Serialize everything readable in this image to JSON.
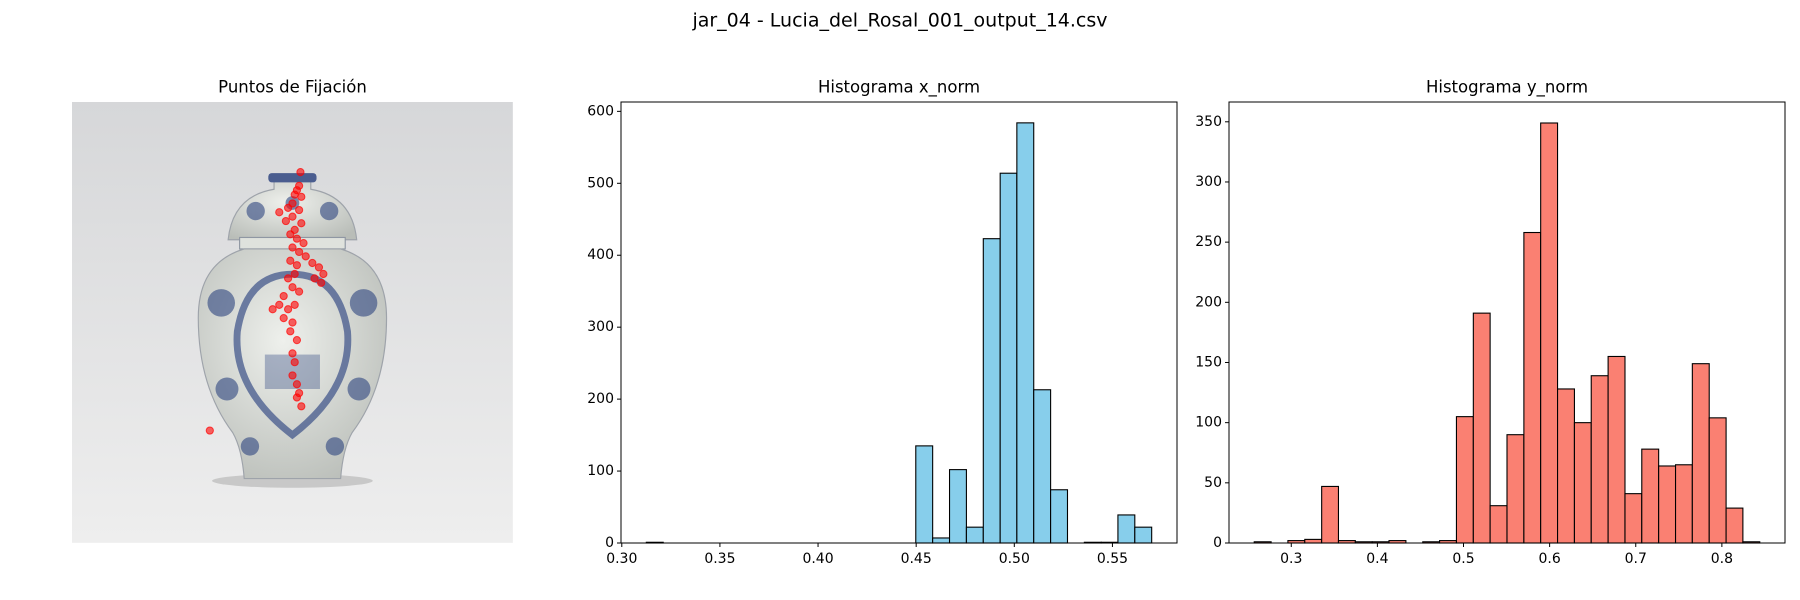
{
  "title": "jar_04 - Lucia_del_Rosal_001_output_14.csv",
  "chart_data": [
    {
      "type": "scatter",
      "title": "Puntos de Fijación",
      "color": "#ff0000",
      "xlim": [
        0,
        1
      ],
      "ylim": [
        1,
        0
      ],
      "x": [
        0.518,
        0.515,
        0.51,
        0.505,
        0.52,
        0.5,
        0.49,
        0.515,
        0.47,
        0.5,
        0.485,
        0.52,
        0.505,
        0.495,
        0.51,
        0.525,
        0.5,
        0.515,
        0.53,
        0.495,
        0.51,
        0.545,
        0.56,
        0.57,
        0.565,
        0.55,
        0.505,
        0.49,
        0.5,
        0.515,
        0.48,
        0.47,
        0.455,
        0.49,
        0.505,
        0.48,
        0.5,
        0.495,
        0.51,
        0.5,
        0.505,
        0.5,
        0.51,
        0.515,
        0.51,
        0.52,
        0.3125
      ],
      "y": [
        0.159,
        0.19,
        0.2,
        0.21,
        0.215,
        0.23,
        0.24,
        0.245,
        0.25,
        0.26,
        0.27,
        0.275,
        0.29,
        0.3,
        0.31,
        0.32,
        0.33,
        0.34,
        0.35,
        0.36,
        0.37,
        0.365,
        0.375,
        0.39,
        0.41,
        0.4,
        0.39,
        0.4,
        0.42,
        0.43,
        0.44,
        0.46,
        0.47,
        0.47,
        0.46,
        0.49,
        0.5,
        0.52,
        0.54,
        0.57,
        0.59,
        0.62,
        0.64,
        0.66,
        0.67,
        0.69,
        0.745
      ]
    },
    {
      "type": "histogram",
      "title": "Histograma x_norm",
      "color": "#87ceeb",
      "bins": [
        0.3125,
        0.3211,
        0.3297,
        0.3383,
        0.3468,
        0.3554,
        0.364,
        0.3726,
        0.3812,
        0.3898,
        0.3983,
        0.4069,
        0.4155,
        0.4241,
        0.4327,
        0.4413,
        0.4498,
        0.4584,
        0.467,
        0.4756,
        0.4842,
        0.4928,
        0.5013,
        0.5099,
        0.5185,
        0.5271,
        0.5357,
        0.5443,
        0.5528,
        0.5614,
        0.57
      ],
      "values": [
        1,
        0,
        0,
        0,
        0,
        0,
        0,
        0,
        0,
        0,
        0,
        0,
        0,
        0,
        0,
        0,
        135,
        7,
        102,
        22,
        423,
        514,
        584,
        213,
        74,
        0,
        1,
        1,
        39,
        22
      ],
      "xlim": [
        0.2996,
        0.5829
      ],
      "ylim": [
        0,
        613
      ],
      "xticks": [
        {
          "value": 0.3,
          "label": "0.30"
        },
        0.35,
        {
          "value": 0.4,
          "label": "0.40"
        },
        0.45,
        {
          "value": 0.5,
          "label": "0.50"
        },
        0.55
      ],
      "yticks": [
        0,
        100,
        200,
        300,
        400,
        500,
        600
      ]
    },
    {
      "type": "histogram",
      "title": "Histograma y_norm",
      "color": "#fa8072",
      "bins": [
        0.257,
        0.2766,
        0.2961,
        0.3157,
        0.3353,
        0.3548,
        0.3744,
        0.394,
        0.4135,
        0.4331,
        0.4527,
        0.4722,
        0.4918,
        0.5114,
        0.5309,
        0.5505,
        0.5701,
        0.5896,
        0.6092,
        0.6288,
        0.6483,
        0.6679,
        0.6875,
        0.707,
        0.7266,
        0.7462,
        0.7657,
        0.7853,
        0.8049,
        0.8244,
        0.844
      ],
      "values": [
        1,
        0,
        2,
        3,
        47,
        2,
        1,
        1,
        2,
        0,
        1,
        2,
        105,
        191,
        31,
        90,
        258,
        349,
        128,
        100,
        139,
        155,
        41,
        78,
        64,
        65,
        149,
        104,
        29,
        1
      ],
      "xlim": [
        0.2277,
        0.8733
      ],
      "ylim": [
        0,
        366.45
      ],
      "xticks": [
        0.3,
        0.4,
        0.5,
        0.6,
        0.7,
        0.8
      ],
      "yticks": [
        0,
        50,
        100,
        150,
        200,
        250,
        300,
        350
      ]
    }
  ]
}
